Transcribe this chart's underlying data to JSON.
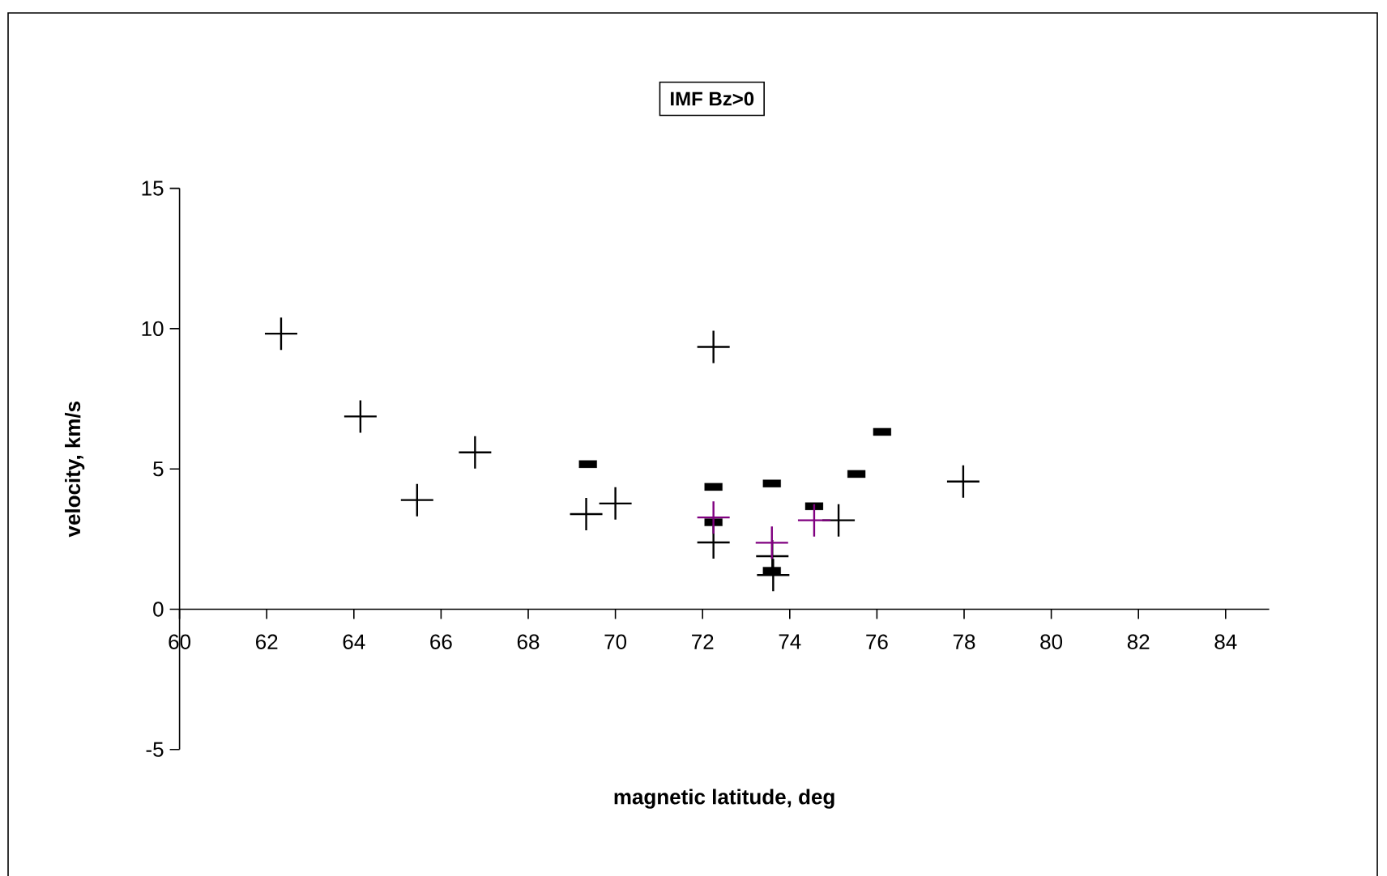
{
  "chart_data": {
    "type": "scatter",
    "title": "IMF Bz>0",
    "xlabel": "magnetic latitude, deg",
    "ylabel": "velocity, km/s",
    "xlim": [
      60,
      85
    ],
    "ylim": [
      -5,
      15
    ],
    "xticks": [
      60,
      62,
      64,
      66,
      68,
      70,
      72,
      74,
      76,
      78,
      80,
      82,
      84
    ],
    "yticks": [
      -5,
      0,
      5,
      10,
      15
    ],
    "series": [
      {
        "color": "#000000",
        "marker": "cross",
        "x": [
          62.33,
          64.15,
          65.45,
          66.78,
          69.33,
          70.0,
          72.25,
          72.25,
          73.62,
          73.6,
          75.12,
          77.98
        ],
        "values": [
          9.82,
          6.87,
          3.89,
          5.59,
          3.39,
          3.77,
          9.35,
          2.38,
          1.22,
          1.89,
          3.17,
          4.55
        ]
      },
      {
        "color": "#000000",
        "marker": "square",
        "x": [
          69.37,
          72.25,
          72.25,
          73.59,
          73.59,
          74.56,
          75.53,
          76.12
        ],
        "values": [
          5.17,
          4.36,
          3.1,
          4.48,
          1.37,
          3.67,
          4.82,
          6.32
        ]
      },
      {
        "color": "#800080",
        "marker": "cross",
        "x": [
          72.25,
          73.59,
          74.56
        ],
        "values": [
          3.27,
          2.37,
          3.17
        ]
      }
    ]
  }
}
